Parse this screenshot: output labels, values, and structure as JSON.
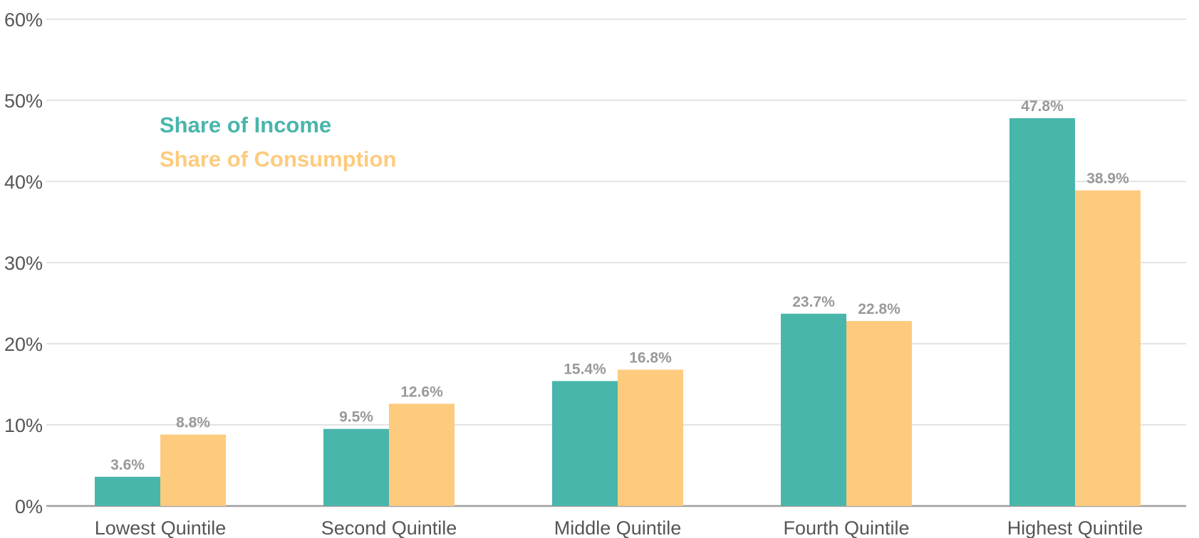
{
  "chart_data": {
    "type": "bar",
    "categories": [
      "Lowest Quintile",
      "Second Quintile",
      "Middle Quintile",
      "Fourth Quintile",
      "Highest Quintile"
    ],
    "series": [
      {
        "name": "Share of Income",
        "color": "#49b6ab",
        "values": [
          3.6,
          9.5,
          15.4,
          23.7,
          47.8
        ],
        "labels": [
          "3.6%",
          "9.5%",
          "15.4%",
          "23.7%",
          "47.8%"
        ]
      },
      {
        "name": "Share of Consumption",
        "color": "#fdcb7e",
        "values": [
          8.8,
          12.6,
          16.8,
          22.8,
          38.9
        ],
        "labels": [
          "8.8%",
          "12.6%",
          "16.8%",
          "22.8%",
          "38.9%"
        ]
      }
    ],
    "title": "",
    "xlabel": "",
    "ylabel": "",
    "ylim": [
      0,
      60
    ],
    "yticks": [
      0,
      10,
      20,
      30,
      40,
      50,
      60
    ],
    "ytick_labels": [
      "0%",
      "10%",
      "20%",
      "30%",
      "40%",
      "50%",
      "60%"
    ],
    "grid": true,
    "legend_position": "top-left"
  }
}
